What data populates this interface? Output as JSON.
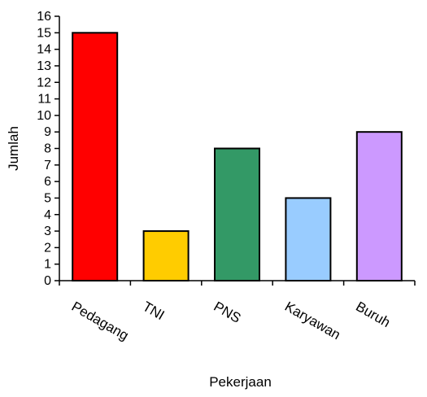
{
  "chart_data": {
    "type": "bar",
    "categories": [
      "Pedagang",
      "TNI",
      "PNS",
      "Karyawan",
      "Buruh"
    ],
    "values": [
      15,
      3,
      8,
      5,
      9
    ],
    "colors": [
      "#ff0000",
      "#ffcc00",
      "#339966",
      "#99ccff",
      "#cc99ff"
    ],
    "xlabel": "Pekerjaan",
    "ylabel": "Jumlah",
    "ylim": [
      0,
      16
    ],
    "yticks": [
      "0",
      "1",
      "2",
      "3",
      "4",
      "5",
      "6",
      "7",
      "8",
      "9",
      "10",
      "11",
      "12",
      "13",
      "14",
      "15",
      "16"
    ],
    "grid": false
  }
}
